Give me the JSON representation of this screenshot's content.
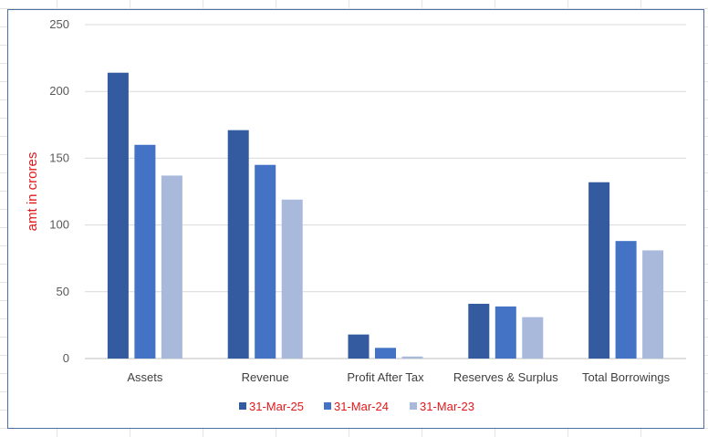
{
  "chart_data": {
    "type": "bar",
    "categories": [
      "Assets",
      "Revenue",
      "Profit After Tax",
      "Reserves & Surplus",
      "Total Borrowings"
    ],
    "series": [
      {
        "name": "31-Mar-25",
        "color": "#345a9f",
        "values": [
          214,
          171,
          18,
          41,
          132
        ]
      },
      {
        "name": "31-Mar-24",
        "color": "#4472c4",
        "values": [
          160,
          145,
          8,
          39,
          88
        ]
      },
      {
        "name": "31-Mar-23",
        "color": "#a9b9dc",
        "values": [
          137,
          119,
          1.5,
          31,
          81
        ]
      }
    ],
    "ylabel": "amt in crores",
    "ylim": [
      0,
      250
    ],
    "yticks": [
      0,
      50,
      100,
      150,
      200,
      250
    ],
    "grid": true,
    "legend": "bottom-center"
  }
}
